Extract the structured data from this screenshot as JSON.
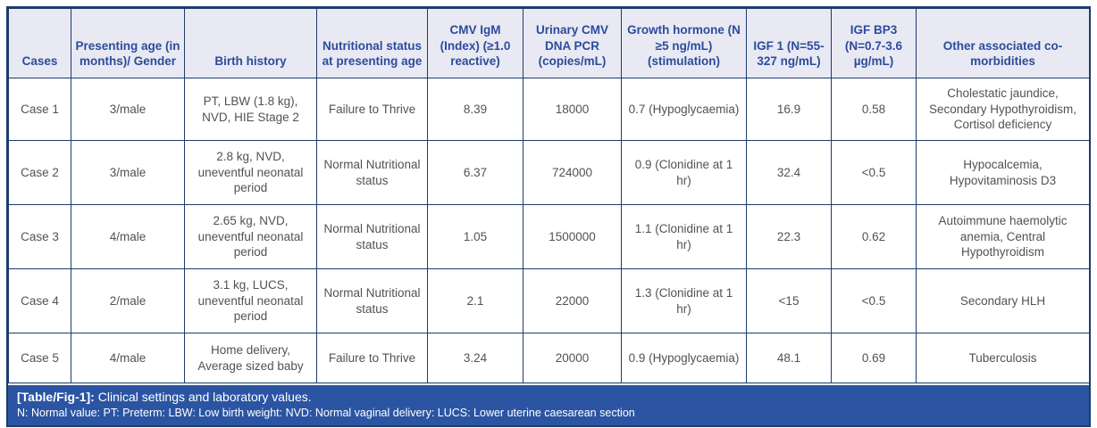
{
  "table": {
    "headers": [
      "Cases",
      "Presenting age (in months)/ Gender",
      "Birth history",
      "Nutritional status at presenting age",
      "CMV IgM (Index) (≥1.0 reactive)",
      "Urinary CMV DNA PCR (copies/mL)",
      "Growth hormone (N ≥5 ng/mL) (stimulation)",
      "IGF 1 (N=55-327 ng/mL)",
      "IGF BP3 (N=0.7-3.6 µg/mL)",
      "Other associated co-morbidities"
    ],
    "rows": [
      [
        "Case 1",
        "3/male",
        "PT, LBW (1.8 kg), NVD, HIE Stage 2",
        "Failure to Thrive",
        "8.39",
        "18000",
        "0.7 (Hypoglycaemia)",
        "16.9",
        "0.58",
        "Cholestatic jaundice, Secondary Hypothyroidism, Cortisol deficiency"
      ],
      [
        "Case 2",
        "3/male",
        "2.8 kg, NVD, uneventful neonatal period",
        "Normal Nutritional status",
        "6.37",
        "724000",
        "0.9 (Clonidine at 1 hr)",
        "32.4",
        "<0.5",
        "Hypocalcemia, Hypovitaminosis D3"
      ],
      [
        "Case 3",
        "4/male",
        "2.65 kg, NVD, uneventful neonatal period",
        "Normal Nutritional status",
        "1.05",
        "1500000",
        "1.1 (Clonidine at 1 hr)",
        "22.3",
        "0.62",
        "Autoimmune haemolytic anemia, Central Hypothyroidism"
      ],
      [
        "Case 4",
        "2/male",
        "3.1 kg, LUCS, uneventful neonatal period",
        "Normal Nutritional status",
        "2.1",
        "22000",
        "1.3 (Clonidine at 1 hr)",
        "<15",
        "<0.5",
        "Secondary HLH"
      ],
      [
        "Case 5",
        "4/male",
        "Home delivery, Average sized baby",
        "Failure to Thrive",
        "3.24",
        "20000",
        "0.9 (Hypoglycaemia)",
        "48.1",
        "0.69",
        "Tuberculosis"
      ]
    ]
  },
  "caption": {
    "label": "[Table/Fig-1]:",
    "title": "Clinical settings and laboratory values.",
    "abbreviations": "N: Normal value: PT: Preterm: LBW: Low birth weight: NVD: Normal vaginal delivery: LUCS: Lower uterine caesarean section"
  },
  "colors": {
    "border": "#1d3c6b",
    "header_bg": "#e8e9f3",
    "header_text": "#2b4c9c",
    "body_text": "#525256",
    "caption_bg": "#2b55a2",
    "caption_text": "#ffffff"
  }
}
